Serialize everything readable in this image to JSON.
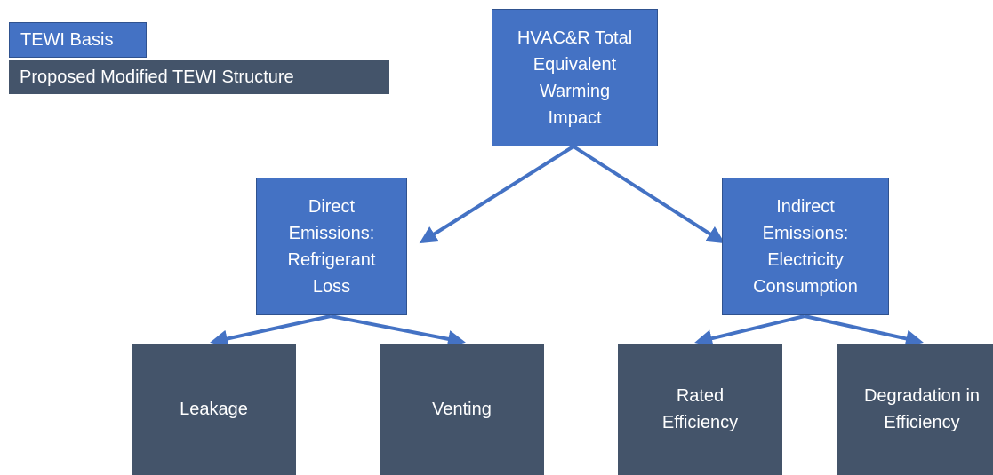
{
  "legend": [
    {
      "label": "TEWI Basis"
    },
    {
      "label": "Proposed Modified TEWI Structure"
    }
  ],
  "nodes": [
    {
      "lines": [
        "HVAC&R Total",
        "Equivalent",
        "Warming",
        "Impact"
      ]
    },
    {
      "lines": [
        "Direct",
        "Emissions:",
        "Refrigerant",
        "Loss"
      ]
    },
    {
      "lines": [
        "Indirect",
        "Emissions:",
        "Electricity",
        "Consumption"
      ]
    },
    {
      "lines": [
        "Leakage"
      ]
    },
    {
      "lines": [
        "Venting"
      ]
    },
    {
      "lines": [
        "Rated",
        "Efficiency"
      ]
    },
    {
      "lines": [
        "Degradation in",
        "Efficiency"
      ]
    }
  ]
}
